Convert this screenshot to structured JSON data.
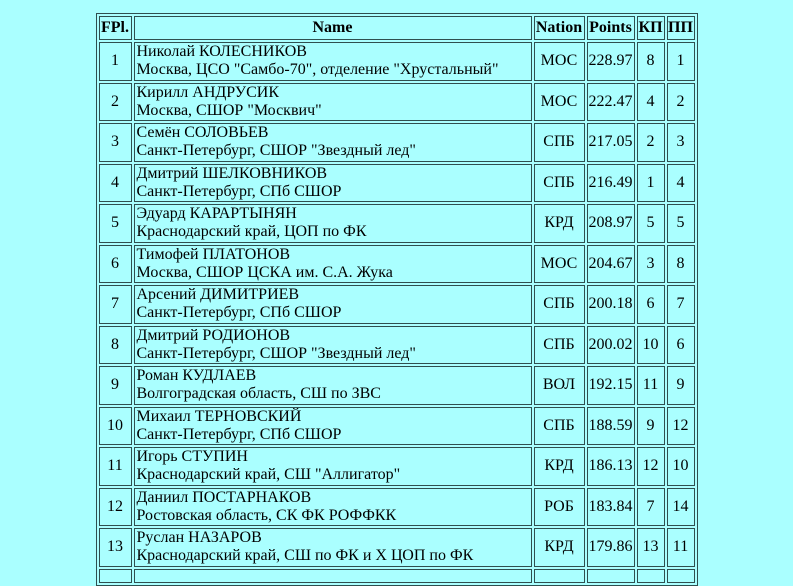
{
  "colors": {
    "page_background": "#AAFFFF",
    "table_border": "#2F4F4F",
    "text": "#000000"
  },
  "results_table": {
    "columns": {
      "fpl": "FPl.",
      "name": "Name",
      "nation": "Nation",
      "points": "Points",
      "kp": "КП",
      "pp": "ПП"
    },
    "rows": [
      {
        "fpl": "1",
        "name": "Николай КОЛЕСНИКОВ",
        "club": "Москва, ЦСО \"Самбо-70\", отделение \"Хрустальный\"",
        "nation": "МОС",
        "points": "228.97",
        "kp": "8",
        "pp": "1"
      },
      {
        "fpl": "2",
        "name": "Кирилл АНДРУСИК",
        "club": "Москва, СШОР \"Москвич\"",
        "nation": "МОС",
        "points": "222.47",
        "kp": "4",
        "pp": "2"
      },
      {
        "fpl": "3",
        "name": "Семён СОЛОВЬЕВ",
        "club": "Санкт-Петербург, СШОР \"Звездный лед\"",
        "nation": "СПБ",
        "points": "217.05",
        "kp": "2",
        "pp": "3"
      },
      {
        "fpl": "4",
        "name": "Дмитрий ШЕЛКОВНИКОВ",
        "club": "Санкт-Петербург, СПб СШОР",
        "nation": "СПБ",
        "points": "216.49",
        "kp": "1",
        "pp": "4"
      },
      {
        "fpl": "5",
        "name": "Эдуард КАРАРТЫНЯН",
        "club": "Краснодарский край, ЦОП по ФК",
        "nation": "КРД",
        "points": "208.97",
        "kp": "5",
        "pp": "5"
      },
      {
        "fpl": "6",
        "name": "Тимофей ПЛАТОНОВ",
        "club": "Москва, СШОР ЦСКА им. С.А. Жука",
        "nation": "МОС",
        "points": "204.67",
        "kp": "3",
        "pp": "8"
      },
      {
        "fpl": "7",
        "name": "Арсений ДИМИТРИЕВ",
        "club": "Санкт-Петербург, СПб СШОР",
        "nation": "СПБ",
        "points": "200.18",
        "kp": "6",
        "pp": "7"
      },
      {
        "fpl": "8",
        "name": "Дмитрий РОДИОНОВ",
        "club": "Санкт-Петербург, СШОР \"Звездный лед\"",
        "nation": "СПБ",
        "points": "200.02",
        "kp": "10",
        "pp": "6"
      },
      {
        "fpl": "9",
        "name": "Роман КУДЛАЕВ",
        "club": "Волгоградская область, СШ по ЗВС",
        "nation": "ВОЛ",
        "points": "192.15",
        "kp": "11",
        "pp": "9"
      },
      {
        "fpl": "10",
        "name": "Михаил ТЕРНОВСКИЙ",
        "club": "Санкт-Петербург, СПб СШОР",
        "nation": "СПБ",
        "points": "188.59",
        "kp": "9",
        "pp": "12"
      },
      {
        "fpl": "11",
        "name": "Игорь СТУПИН",
        "club": "Краснодарский край, СШ \"Аллигатор\"",
        "nation": "КРД",
        "points": "186.13",
        "kp": "12",
        "pp": "10"
      },
      {
        "fpl": "12",
        "name": "Даниил ПОСТАРНАКОВ",
        "club": "Ростовская область, СК ФК РОФФКК",
        "nation": "РОБ",
        "points": "183.84",
        "kp": "7",
        "pp": "14"
      },
      {
        "fpl": "13",
        "name": "Руслан НАЗАРОВ",
        "club": "Краснодарский край, СШ по ФК и Х ЦОП по ФК",
        "nation": "КРД",
        "points": "179.86",
        "kp": "13",
        "pp": "11"
      }
    ]
  }
}
